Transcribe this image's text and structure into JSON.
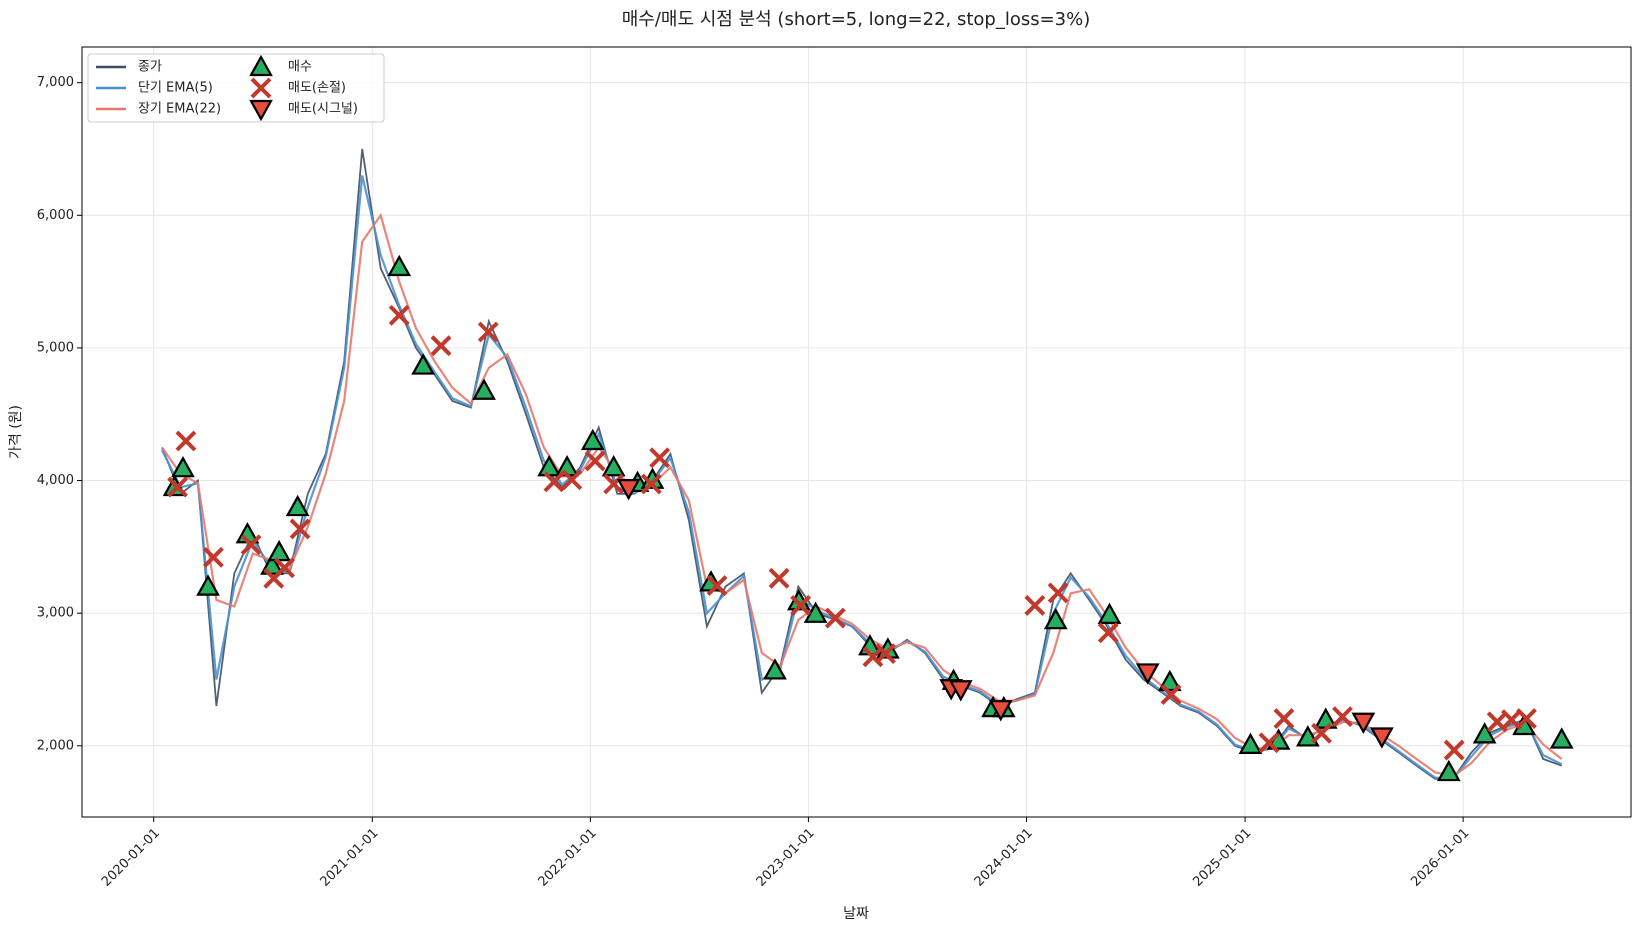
{
  "chart_data": {
    "type": "line",
    "title": "매수/매도 시점 분석 (short=5, long=22, stop_loss=3%)",
    "x_label": "날짜",
    "y_label": "가격 (원)",
    "xlim": [
      "2019-09-03",
      "2026-10-09"
    ],
    "xticks": [
      "2020-01-01",
      "2021-01-01",
      "2022-01-01",
      "2023-01-01",
      "2024-01-01",
      "2025-01-01",
      "2026-01-01"
    ],
    "ylim": [
      1463,
      7269
    ],
    "yticks": [
      {
        "value": 2000,
        "label": "2,000"
      },
      {
        "value": 3000,
        "label": "3,000"
      },
      {
        "value": 4000,
        "label": "4,000"
      },
      {
        "value": 5000,
        "label": "5,000"
      },
      {
        "value": 6000,
        "label": "6,000"
      },
      {
        "value": 7000,
        "label": "7,000"
      }
    ],
    "grid": true,
    "legend": "upper left",
    "x": [
      "2020-01-15",
      "2020-02-15",
      "2020-03-15",
      "2020-04-15",
      "2020-05-15",
      "2020-06-15",
      "2020-07-15",
      "2020-08-15",
      "2020-09-15",
      "2020-10-15",
      "2020-11-15",
      "2020-12-15",
      "2021-01-15",
      "2021-02-15",
      "2021-03-15",
      "2021-04-15",
      "2021-05-15",
      "2021-06-15",
      "2021-07-15",
      "2021-08-15",
      "2021-09-15",
      "2021-10-15",
      "2021-11-15",
      "2021-12-15",
      "2022-01-15",
      "2022-02-15",
      "2022-03-15",
      "2022-04-15",
      "2022-05-15",
      "2022-06-15",
      "2022-07-15",
      "2022-08-15",
      "2022-09-15",
      "2022-10-15",
      "2022-11-15",
      "2022-12-15",
      "2023-01-15",
      "2023-02-15",
      "2023-03-15",
      "2023-04-15",
      "2023-05-15",
      "2023-06-15",
      "2023-07-15",
      "2023-08-15",
      "2023-09-15",
      "2023-10-15",
      "2023-11-15",
      "2023-12-15",
      "2024-01-15",
      "2024-02-15",
      "2024-03-15",
      "2024-04-15",
      "2024-05-15",
      "2024-06-15",
      "2024-07-15",
      "2024-08-15",
      "2024-09-15",
      "2024-10-15",
      "2024-11-15",
      "2024-12-15",
      "2025-01-15",
      "2025-02-15",
      "2025-03-15",
      "2025-04-15",
      "2025-05-15",
      "2025-06-15",
      "2025-07-15",
      "2025-08-15",
      "2025-09-15",
      "2025-10-15",
      "2025-11-15",
      "2025-12-15",
      "2026-01-15",
      "2026-02-15",
      "2026-03-15",
      "2026-04-15",
      "2026-05-15",
      "2026-06-15"
    ],
    "series": [
      {
        "name": "종가",
        "type": "line",
        "color": "#3d4f66",
        "values": [
          4250,
          3900,
          4000,
          2300,
          3300,
          3600,
          3300,
          3300,
          3900,
          4200,
          4900,
          6500,
          5600,
          5300,
          5000,
          4800,
          4600,
          4550,
          5200,
          4900,
          4500,
          4100,
          3950,
          4100,
          4400,
          3900,
          3900,
          4000,
          4200,
          3700,
          2900,
          3200,
          3300,
          2400,
          2600,
          3200,
          3000,
          2950,
          2900,
          2750,
          2700,
          2800,
          2700,
          2500,
          2450,
          2400,
          2300,
          2350,
          2400,
          3100,
          3300,
          3100,
          2900,
          2650,
          2500,
          2400,
          2300,
          2250,
          2150,
          2000,
          1950,
          1980,
          2150,
          2050,
          2150,
          2200,
          2150,
          2050,
          1950,
          1850,
          1750,
          1750,
          1950,
          2100,
          2150,
          2200,
          1900,
          1850
        ]
      },
      {
        "name": "단기 EMA(5)",
        "type": "line",
        "color": "#4a90d0",
        "values": [
          4230,
          3950,
          3980,
          2500,
          3200,
          3550,
          3350,
          3300,
          3800,
          4180,
          4850,
          6300,
          5700,
          5320,
          5030,
          4820,
          4620,
          4560,
          5100,
          4930,
          4550,
          4150,
          3970,
          4080,
          4350,
          3950,
          3900,
          3990,
          4170,
          3760,
          3000,
          3150,
          3280,
          2500,
          2580,
          3120,
          3020,
          2960,
          2900,
          2770,
          2710,
          2790,
          2710,
          2520,
          2460,
          2410,
          2310,
          2340,
          2390,
          3000,
          3270,
          3120,
          2920,
          2680,
          2520,
          2410,
          2310,
          2260,
          2160,
          2010,
          1960,
          1980,
          2130,
          2060,
          2140,
          2190,
          2160,
          2060,
          1960,
          1860,
          1760,
          1750,
          1920,
          2080,
          2140,
          2190,
          1930,
          1860
        ]
      },
      {
        "name": "장기 EMA(22)",
        "type": "line",
        "color": "#e8786c",
        "values": [
          4250,
          4050,
          3980,
          3100,
          3050,
          3450,
          3400,
          3330,
          3650,
          4050,
          4600,
          5800,
          6000,
          5500,
          5150,
          4900,
          4700,
          4580,
          4850,
          4950,
          4650,
          4250,
          4030,
          4050,
          4250,
          4050,
          3950,
          3970,
          4100,
          3850,
          3200,
          3150,
          3250,
          2700,
          2600,
          2950,
          3050,
          2980,
          2920,
          2800,
          2730,
          2780,
          2740,
          2570,
          2480,
          2430,
          2340,
          2340,
          2380,
          2700,
          3150,
          3180,
          2980,
          2740,
          2570,
          2450,
          2340,
          2280,
          2200,
          2060,
          1980,
          1980,
          2080,
          2080,
          2120,
          2180,
          2170,
          2090,
          2000,
          1900,
          1800,
          1770,
          1870,
          2030,
          2120,
          2170,
          2010,
          1900
        ]
      },
      {
        "name": "매수",
        "type": "scatter",
        "marker": "^",
        "color": "#27ae60",
        "x": [
          "2020-02-05",
          "2020-02-19",
          "2020-04-01",
          "2020-06-06",
          "2020-07-17",
          "2020-07-29",
          "2020-08-29",
          "2021-02-15",
          "2021-03-27",
          "2021-07-07",
          "2021-10-24",
          "2021-11-23",
          "2022-01-05",
          "2022-02-09",
          "2022-03-21",
          "2022-04-15",
          "2022-07-22",
          "2022-11-06",
          "2022-12-16",
          "2023-01-13",
          "2023-04-14",
          "2023-05-14",
          "2023-09-01",
          "2023-11-06",
          "2023-11-24",
          "2024-02-19",
          "2024-05-19",
          "2024-08-28",
          "2025-01-10",
          "2025-02-26",
          "2025-04-16",
          "2025-05-16",
          "2025-12-08",
          "2026-02-06",
          "2026-04-13",
          "2026-06-15"
        ],
        "values": [
          3951,
          4093,
          3200,
          3595,
          3358,
          3460,
          3800,
          5610,
          4867,
          4677,
          4100,
          4100,
          4298,
          4100,
          3982,
          4006,
          3232,
          2568,
          3090,
          2995,
          2750,
          2726,
          2489,
          2284,
          2284,
          2947,
          2987,
          2481,
          2007,
          2039,
          2063,
          2197,
          1802,
          2086,
          2149,
          2047
        ]
      },
      {
        "name": "매도(손절)",
        "type": "scatter",
        "marker": "x",
        "color": "#c0392b",
        "x": [
          "2020-02-10",
          "2020-02-24",
          "2020-04-10",
          "2020-06-12",
          "2020-07-20",
          "2020-08-07",
          "2020-09-02",
          "2021-02-15",
          "2021-04-26",
          "2021-07-14",
          "2021-11-01",
          "2021-12-01",
          "2022-01-09",
          "2022-02-09",
          "2022-04-13",
          "2022-04-27",
          "2022-08-01",
          "2022-11-13",
          "2022-12-19",
          "2023-02-15",
          "2023-04-19",
          "2023-05-10",
          "2024-01-15",
          "2024-02-23",
          "2024-05-17",
          "2024-08-30",
          "2025-02-10",
          "2025-03-07",
          "2025-05-09",
          "2025-06-13",
          "2025-12-17",
          "2026-02-27",
          "2026-03-23",
          "2026-04-17"
        ],
        "values": [
          3951,
          4298,
          3421,
          3516,
          3263,
          3342,
          3635,
          5246,
          5017,
          5120,
          3990,
          4006,
          4148,
          3974,
          3974,
          4172,
          3208,
          3263,
          3058,
          2963,
          2671,
          2695,
          3058,
          3153,
          2852,
          2386,
          2023,
          2205,
          2094,
          2220,
          1968,
          2181,
          2197,
          2205
        ]
      },
      {
        "name": "매도(시그널)",
        "type": "scatter",
        "marker": "v",
        "color": "#e74c3c",
        "x": [
          "2022-03-06",
          "2023-08-28",
          "2023-09-13",
          "2023-11-19",
          "2024-07-22",
          "2025-07-18",
          "2025-08-18"
        ],
        "values": [
          3943,
          2434,
          2426,
          2276,
          2553,
          2181,
          2070
        ]
      }
    ]
  }
}
